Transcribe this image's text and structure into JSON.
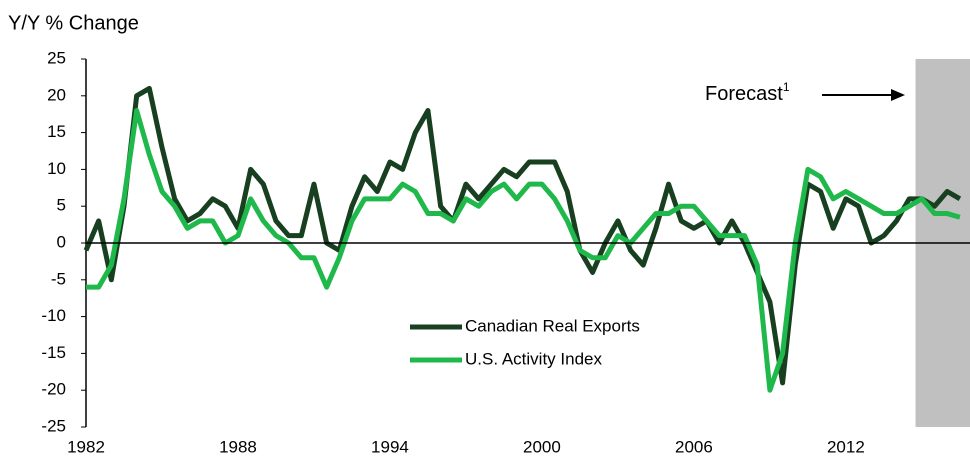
{
  "chart_data": {
    "type": "line",
    "y_label": "Y/Y % Change",
    "annotation": "Forecast",
    "annotation_note": "1",
    "forecast_start": 2014.75,
    "forecast_color": "#c0c0c0",
    "x": [
      1982,
      1982.5,
      1983,
      1983.5,
      1984,
      1984.5,
      1985,
      1985.5,
      1986,
      1986.5,
      1987,
      1987.5,
      1988,
      1988.5,
      1989,
      1989.5,
      1990,
      1990.5,
      1991,
      1991.5,
      1992,
      1992.5,
      1993,
      1993.5,
      1994,
      1994.5,
      1995,
      1995.5,
      1996,
      1996.5,
      1997,
      1997.5,
      1998,
      1998.5,
      1999,
      1999.5,
      2000,
      2000.5,
      2001,
      2001.5,
      2002,
      2002.5,
      2003,
      2003.5,
      2004,
      2004.5,
      2005,
      2005.5,
      2006,
      2006.5,
      2007,
      2007.5,
      2008,
      2008.5,
      2009,
      2009.5,
      2010,
      2010.5,
      2011,
      2011.5,
      2012,
      2012.5,
      2013,
      2013.5,
      2014,
      2014.5,
      2015,
      2015.5,
      2016,
      2016.5
    ],
    "series": [
      {
        "name": "Canadian Real Exports",
        "color": "#173f20",
        "values": [
          -1,
          3,
          -5,
          5,
          20,
          21,
          13,
          6,
          3,
          4,
          6,
          5,
          2,
          10,
          8,
          3,
          1,
          1,
          8,
          0,
          -1,
          5,
          9,
          7,
          11,
          10,
          15,
          18,
          5,
          3,
          8,
          6,
          8,
          10,
          9,
          11,
          11,
          11,
          7,
          -1,
          -4,
          0,
          3,
          -1,
          -3,
          2,
          8,
          3,
          2,
          3,
          0,
          3,
          0,
          -4,
          -8,
          -19,
          -3,
          8,
          7,
          2,
          6,
          5,
          0,
          1,
          3,
          6,
          6,
          5,
          7,
          6
        ]
      },
      {
        "name": "U.S. Activity Index",
        "color": "#1fb84a",
        "values": [
          -6,
          -6,
          -3,
          6,
          18,
          12,
          7,
          5,
          2,
          3,
          3,
          0,
          1,
          6,
          3,
          1,
          0,
          -2,
          -2,
          -6,
          -2,
          3,
          6,
          6,
          6,
          8,
          7,
          4,
          4,
          3,
          6,
          5,
          7,
          8,
          6,
          8,
          8,
          6,
          3,
          -1,
          -2,
          -2,
          1,
          0,
          2,
          4,
          4,
          5,
          5,
          3,
          1,
          1,
          1,
          -3,
          -20,
          -15,
          0,
          10,
          9,
          6,
          7,
          6,
          5,
          4,
          4,
          5,
          6,
          4,
          4,
          3.5
        ]
      }
    ],
    "xlim": [
      1982,
      2016.9
    ],
    "xticks": [
      1982,
      1988,
      1994,
      2000,
      2006,
      2012
    ],
    "ylim": [
      -25,
      25
    ],
    "yticks": [
      -25,
      -20,
      -15,
      -10,
      -5,
      0,
      5,
      10,
      15,
      20,
      25
    ]
  }
}
